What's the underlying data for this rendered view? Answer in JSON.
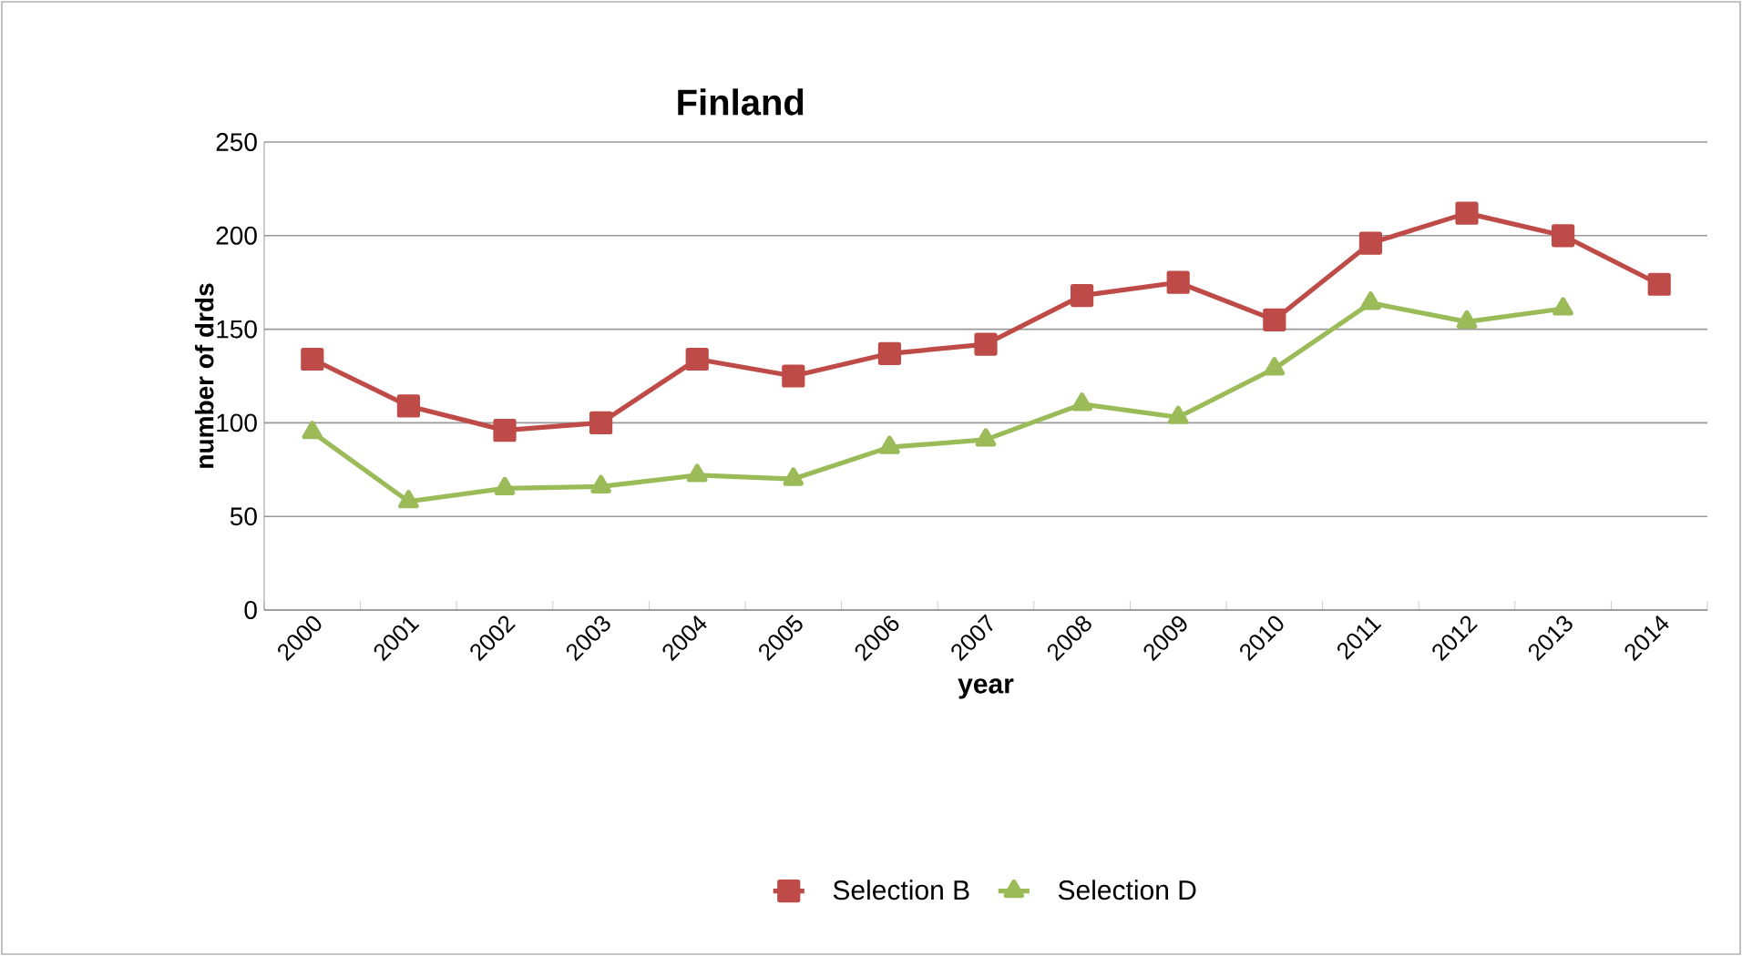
{
  "chart_data": {
    "type": "line",
    "title": "Finland",
    "xlabel": "year",
    "ylabel": "number of drds",
    "categories": [
      "2000",
      "2001",
      "2002",
      "2003",
      "2004",
      "2005",
      "2006",
      "2007",
      "2008",
      "2009",
      "2010",
      "2011",
      "2012",
      "2013",
      "2014"
    ],
    "series": [
      {
        "name": "Selection B",
        "color": "#be4b48",
        "marker": "square",
        "values": [
          134,
          109,
          96,
          100,
          134,
          125,
          137,
          142,
          168,
          175,
          155,
          196,
          212,
          200,
          174
        ]
      },
      {
        "name": "Selection D",
        "color": "#9bbb59",
        "marker": "triangle",
        "values": [
          95,
          58,
          65,
          66,
          72,
          70,
          87,
          91,
          110,
          103,
          129,
          164,
          154,
          161,
          null
        ]
      }
    ],
    "ylim": [
      0,
      250
    ],
    "yticks": [
      0,
      50,
      100,
      150,
      200,
      250
    ],
    "grid": "y",
    "legend": "bottom",
    "line_style": "solid"
  }
}
